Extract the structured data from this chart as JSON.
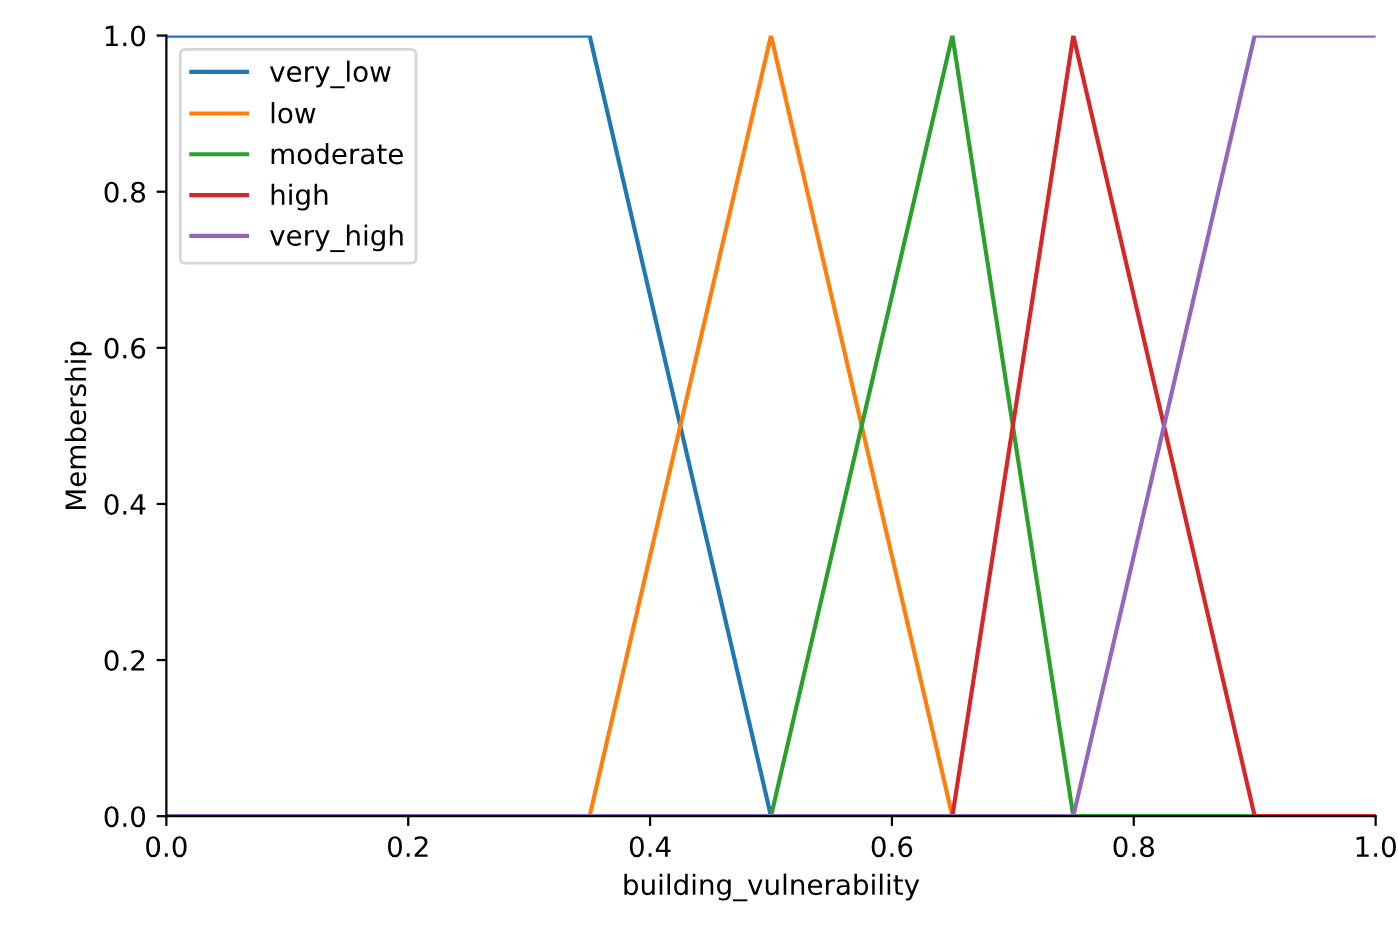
{
  "chart_data": {
    "type": "line",
    "xlabel": "building_vulnerability",
    "ylabel": "Membership",
    "series": [
      {
        "name": "very_low",
        "color": "#1f77b4",
        "x": [
          0,
          0.35,
          0.5,
          1
        ],
        "values": [
          1,
          1,
          0,
          0
        ]
      },
      {
        "name": "low",
        "color": "#ff7f0e",
        "x": [
          0,
          0.35,
          0.5,
          0.65,
          1
        ],
        "values": [
          0,
          0,
          1,
          0,
          0
        ]
      },
      {
        "name": "moderate",
        "color": "#2ca02c",
        "x": [
          0,
          0.5,
          0.65,
          0.75,
          1
        ],
        "values": [
          0,
          0,
          1,
          0,
          0
        ]
      },
      {
        "name": "high",
        "color": "#d62728",
        "x": [
          0,
          0.65,
          0.75,
          0.9,
          1
        ],
        "values": [
          0,
          0,
          1,
          0,
          0
        ]
      },
      {
        "name": "very_high",
        "color": "#9467bd",
        "x": [
          0,
          0.75,
          0.9,
          1
        ],
        "values": [
          0,
          0,
          1,
          1
        ]
      }
    ],
    "xlim": [
      0,
      1
    ],
    "ylim": [
      0,
      1
    ],
    "xticks": [
      {
        "value": 0,
        "label": "0.0"
      },
      {
        "value": 0.2,
        "label": "0.2"
      },
      {
        "value": 0.4,
        "label": "0.4"
      },
      {
        "value": 0.6,
        "label": "0.6"
      },
      {
        "value": 0.8,
        "label": "0.8"
      },
      {
        "value": 1,
        "label": "1.0"
      }
    ],
    "yticks": [
      {
        "value": 0,
        "label": "0.0"
      },
      {
        "value": 0.2,
        "label": "0.2"
      },
      {
        "value": 0.4,
        "label": "0.4"
      },
      {
        "value": 0.6,
        "label": "0.6"
      },
      {
        "value": 0.8,
        "label": "0.8"
      },
      {
        "value": 1,
        "label": "1.0"
      }
    ],
    "legend": "top left",
    "grid": false
  }
}
